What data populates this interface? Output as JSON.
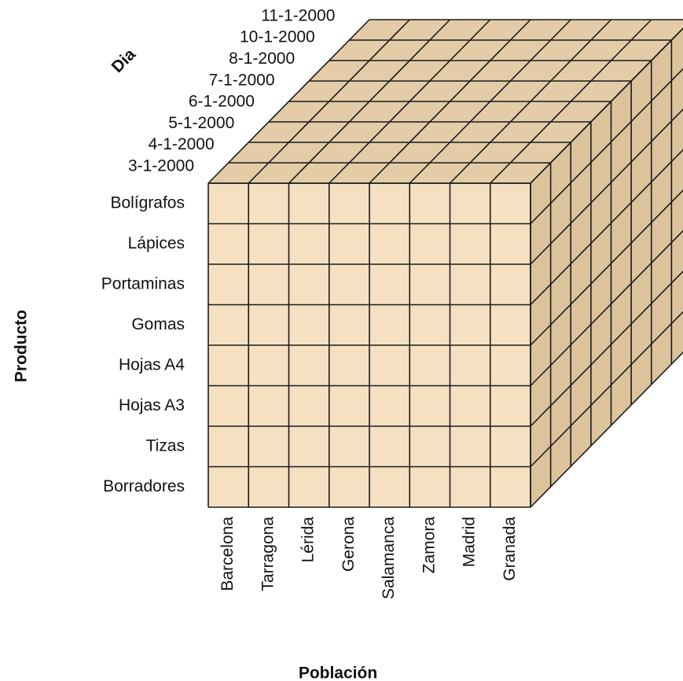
{
  "axes": {
    "day": "Dia",
    "product": "Producto",
    "city": "Población"
  },
  "days": [
    "3-1-2000",
    "4-1-2000",
    "5-1-2000",
    "6-1-2000",
    "7-1-2000",
    "8-1-2000",
    "10-1-2000",
    "11-1-2000"
  ],
  "products": [
    "Bolígrafos",
    "Lápices",
    "Portaminas",
    "Gomas",
    "Hojas A4",
    "Hojas A3",
    "Tizas",
    "Borradores"
  ],
  "cities": [
    "Barcelona",
    "Tarragona",
    "Lérida",
    "Gerona",
    "Salamanca",
    "Zamora",
    "Madrid",
    "Granada"
  ]
}
